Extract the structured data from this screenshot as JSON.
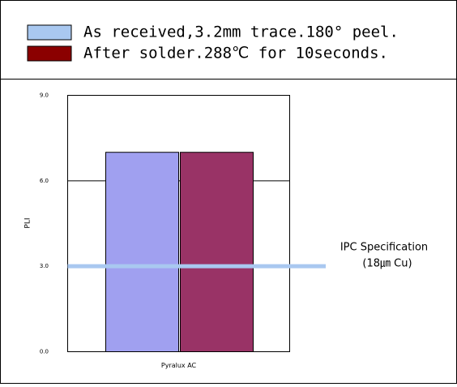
{
  "chart_data": {
    "type": "bar",
    "categories": [
      "Pyralux AC"
    ],
    "series": [
      {
        "name": "As received,3.2mm trace.180° peel.",
        "legend_color": "#a9c8f0",
        "color": "#a0a0f0",
        "values": [
          7.0
        ]
      },
      {
        "name": "After solder.288℃ for 10seconds.",
        "legend_color": "#8b0000",
        "color": "#993366",
        "values": [
          7.0
        ]
      }
    ],
    "ylabel": "PLI",
    "ylim": [
      0,
      9
    ],
    "yticks": [
      {
        "value": 0,
        "label": "0.0"
      },
      {
        "value": 3,
        "label": "3.0"
      },
      {
        "value": 6,
        "label": "6.0"
      },
      {
        "value": 9,
        "label": "9.0"
      }
    ],
    "grid": true,
    "reference_line": {
      "value": 3.0,
      "color": "#a9c8f0",
      "label": [
        "IPC Specification",
        "(18㎛ Cu)"
      ]
    }
  }
}
